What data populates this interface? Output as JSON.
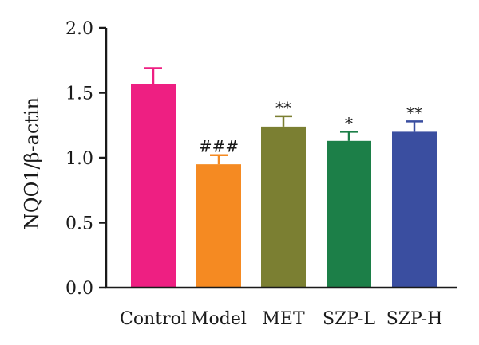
{
  "chart_data": {
    "type": "bar",
    "ylabel": "NQO1/β-actin",
    "xlabel": "",
    "ylim": [
      0,
      2.0
    ],
    "yticks": [
      "0.0",
      "0.5",
      "1.0",
      "1.5",
      "2.0"
    ],
    "categories": [
      "Control",
      "Model",
      "MET",
      "SZP-L",
      "SZP-H"
    ],
    "values": [
      1.57,
      0.95,
      1.24,
      1.13,
      1.2
    ],
    "error": [
      0.12,
      0.07,
      0.08,
      0.07,
      0.08
    ],
    "significance": [
      "",
      "###",
      "**",
      "*",
      "**"
    ],
    "colors": [
      "#ee1f82",
      "#f58a22",
      "#7b7f32",
      "#1c7f48",
      "#3a4ea0"
    ],
    "grid": false
  }
}
